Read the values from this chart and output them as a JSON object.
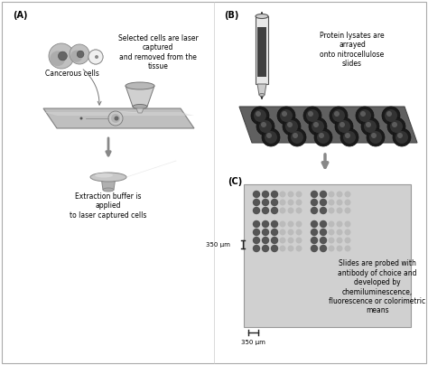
{
  "figsize": [
    4.74,
    4.04
  ],
  "dpi": 100,
  "bg_color": "#ffffff",
  "panel_A_label": "(A)",
  "panel_B_label": "(B)",
  "panel_C_label": "(C)",
  "cancerous_cells_text": "Cancerous cells",
  "laser_text": "Selected cells are laser\ncaptured\nand removed from the\ntissue",
  "extraction_text": "Extraction buffer is\napplied\nto laser captured cells",
  "protein_text": "Protein lysates are\narrayed\nonto nitrocellulose\nslides",
  "probed_text": "Slides are probed with\nantibody of choice and\ndeveloped by\nchemiluminescence,\nfluorescence or colorimetric\nmeans",
  "scale_bar_v_text": "350 μm",
  "scale_bar_h_text": "350 μm",
  "dot_dark": "#555555",
  "dot_light": "#bbbbbb",
  "slide_bg": "#c0c0c0",
  "border_color": "#aaaaaa",
  "panel_div_color": "#cccccc"
}
